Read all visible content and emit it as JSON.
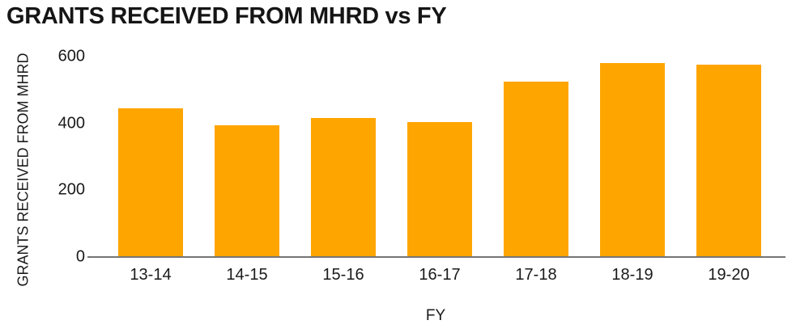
{
  "title": "GRANTS RECEIVED FROM MHRD vs FY",
  "colors": {
    "bar": "#FFA500",
    "axis_line": "#757575",
    "text": "#1a1a1a",
    "background": "#ffffff"
  },
  "chart_data": {
    "type": "bar",
    "title": "GRANTS RECEIVED FROM MHRD vs FY",
    "xlabel": "FY",
    "ylabel": "GRANTS RECEIVED FROM MHRD",
    "categories": [
      "13-14",
      "14-15",
      "15-16",
      "16-17",
      "17-18",
      "18-19",
      "19-20"
    ],
    "values": [
      445,
      395,
      415,
      405,
      525,
      580,
      575
    ],
    "ylim": [
      0,
      600
    ],
    "yticks": [
      0,
      200,
      400,
      600
    ],
    "grid": false,
    "legend": false,
    "bar_color": "#FFA500"
  }
}
